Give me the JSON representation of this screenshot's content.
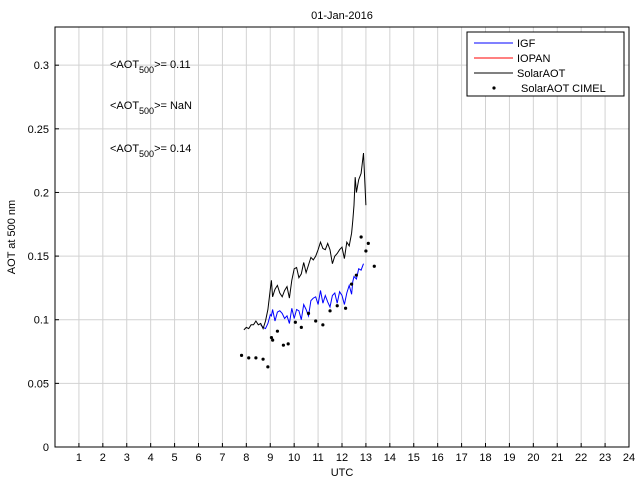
{
  "chart_data": {
    "type": "line",
    "title": "01-Jan-2016",
    "xlabel": "UTC",
    "ylabel": "AOT at 500 nm",
    "xlim": [
      0,
      24
    ],
    "ylim": [
      0,
      0.33
    ],
    "grid": true,
    "legend_position": "top-right",
    "x_ticks": [
      "1",
      "2",
      "3",
      "4",
      "5",
      "6",
      "7",
      "8",
      "9",
      "10",
      "11",
      "12",
      "13",
      "14",
      "15",
      "16",
      "17",
      "18",
      "19",
      "20",
      "21",
      "22",
      "23",
      "24"
    ],
    "y_ticks": [
      "0",
      "0.05",
      "0.1",
      "0.15",
      "0.2",
      "0.25",
      "0.3"
    ],
    "annotations": [
      {
        "prefix": "<AOT",
        "sub": "500",
        "suffix": ">= 0.11",
        "color": "#0000ff"
      },
      {
        "prefix": "<AOT",
        "sub": "500",
        "suffix": ">=  NaN",
        "color": "#ff0000"
      },
      {
        "prefix": "<AOT",
        "sub": "500",
        "suffix": ">= 0.14",
        "color": "#000000"
      }
    ],
    "series": [
      {
        "name": "IGF",
        "color": "#0000ff",
        "style": "line",
        "x": [
          8.6,
          8.7,
          8.8,
          8.9,
          9.0,
          9.05,
          9.1,
          9.2,
          9.3,
          9.4,
          9.5,
          9.6,
          9.7,
          9.8,
          9.9,
          10.0,
          10.1,
          10.2,
          10.3,
          10.4,
          10.5,
          10.6,
          10.7,
          10.8,
          10.9,
          11.0,
          11.1,
          11.2,
          11.3,
          11.4,
          11.5,
          11.6,
          11.7,
          11.8,
          11.9,
          12.0,
          12.1,
          12.2,
          12.3,
          12.4,
          12.45,
          12.5,
          12.6,
          12.7,
          12.8,
          12.9
        ],
        "y": [
          0.096,
          0.094,
          0.093,
          0.097,
          0.104,
          0.103,
          0.108,
          0.099,
          0.106,
          0.107,
          0.105,
          0.101,
          0.103,
          0.097,
          0.109,
          0.101,
          0.108,
          0.107,
          0.1,
          0.112,
          0.108,
          0.103,
          0.115,
          0.117,
          0.118,
          0.112,
          0.123,
          0.113,
          0.119,
          0.114,
          0.11,
          0.119,
          0.121,
          0.113,
          0.122,
          0.119,
          0.112,
          0.121,
          0.127,
          0.12,
          0.13,
          0.134,
          0.132,
          0.14,
          0.139,
          0.144
        ]
      },
      {
        "name": "IOPAN",
        "color": "#ff0000",
        "style": "line",
        "x": [],
        "y": []
      },
      {
        "name": "SolarAOT",
        "color": "#000000",
        "style": "line",
        "x": [
          7.9,
          8.0,
          8.1,
          8.2,
          8.3,
          8.4,
          8.5,
          8.6,
          8.7,
          8.8,
          8.9,
          9.0,
          9.05,
          9.1,
          9.2,
          9.3,
          9.4,
          9.5,
          9.6,
          9.7,
          9.8,
          9.9,
          10.0,
          10.1,
          10.2,
          10.3,
          10.4,
          10.5,
          10.6,
          10.7,
          10.8,
          10.9,
          11.0,
          11.1,
          11.2,
          11.3,
          11.4,
          11.5,
          11.6,
          11.7,
          11.8,
          11.9,
          12.0,
          12.1,
          12.2,
          12.3,
          12.4,
          12.45,
          12.5,
          12.55,
          12.6,
          12.7,
          12.8,
          12.9,
          13.0
        ],
        "y": [
          0.092,
          0.094,
          0.093,
          0.096,
          0.096,
          0.099,
          0.096,
          0.097,
          0.093,
          0.099,
          0.108,
          0.124,
          0.131,
          0.118,
          0.124,
          0.127,
          0.121,
          0.118,
          0.123,
          0.126,
          0.117,
          0.131,
          0.14,
          0.141,
          0.133,
          0.136,
          0.145,
          0.137,
          0.143,
          0.149,
          0.147,
          0.15,
          0.155,
          0.161,
          0.156,
          0.155,
          0.16,
          0.155,
          0.144,
          0.15,
          0.152,
          0.155,
          0.157,
          0.148,
          0.161,
          0.158,
          0.168,
          0.178,
          0.19,
          0.212,
          0.2,
          0.21,
          0.215,
          0.231,
          0.19
        ]
      },
      {
        "name": "SolarAOT CIMEL",
        "color": "#000000",
        "style": "points",
        "x": [
          7.8,
          8.1,
          8.4,
          8.7,
          8.9,
          9.05,
          9.1,
          9.3,
          9.55,
          9.75,
          10.05,
          10.3,
          10.6,
          10.9,
          11.2,
          11.5,
          11.8,
          12.15,
          12.4,
          12.6,
          12.8,
          13.0,
          13.1,
          13.35
        ],
        "y": [
          0.072,
          0.07,
          0.07,
          0.069,
          0.063,
          0.086,
          0.084,
          0.091,
          0.08,
          0.081,
          0.098,
          0.094,
          0.105,
          0.099,
          0.096,
          0.107,
          0.111,
          0.109,
          0.128,
          0.135,
          0.165,
          0.154,
          0.16,
          0.142
        ]
      }
    ]
  }
}
